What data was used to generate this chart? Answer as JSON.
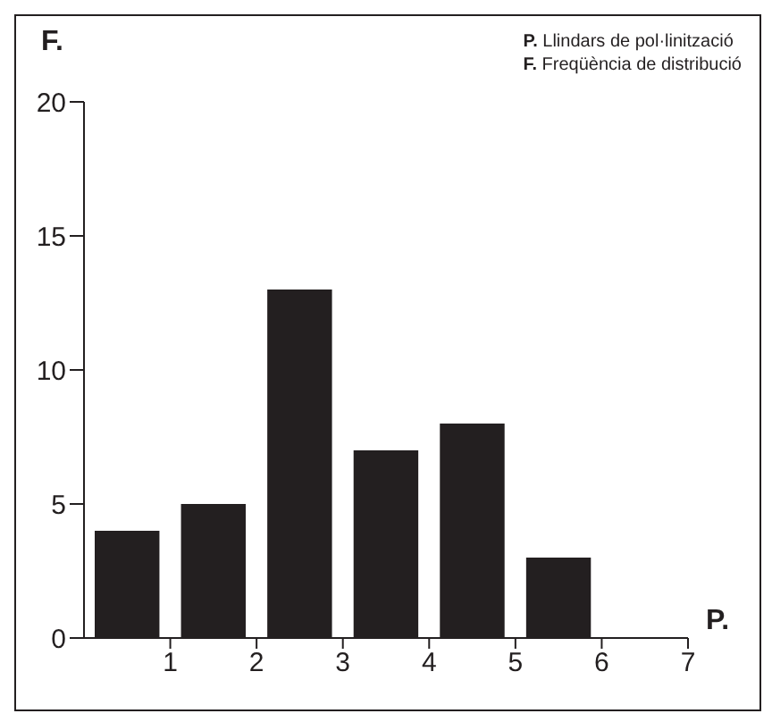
{
  "chart_data": {
    "type": "histogram",
    "xlabel": "P.",
    "ylabel": "F.",
    "bins": [
      0,
      1,
      2,
      3,
      4,
      5,
      6,
      7
    ],
    "values": [
      4,
      5,
      13,
      7,
      8,
      3,
      0
    ],
    "color": "#231f20",
    "xlim": [
      0,
      7
    ],
    "xticks": [
      1,
      2,
      3,
      4,
      5,
      6,
      7
    ],
    "ylim": [
      0,
      20
    ],
    "yticks": [
      0,
      5,
      10,
      15,
      20
    ],
    "grid": false,
    "annotations": [
      "P. Llindars de pol·linització",
      "F. Freqüència de distribució"
    ]
  }
}
